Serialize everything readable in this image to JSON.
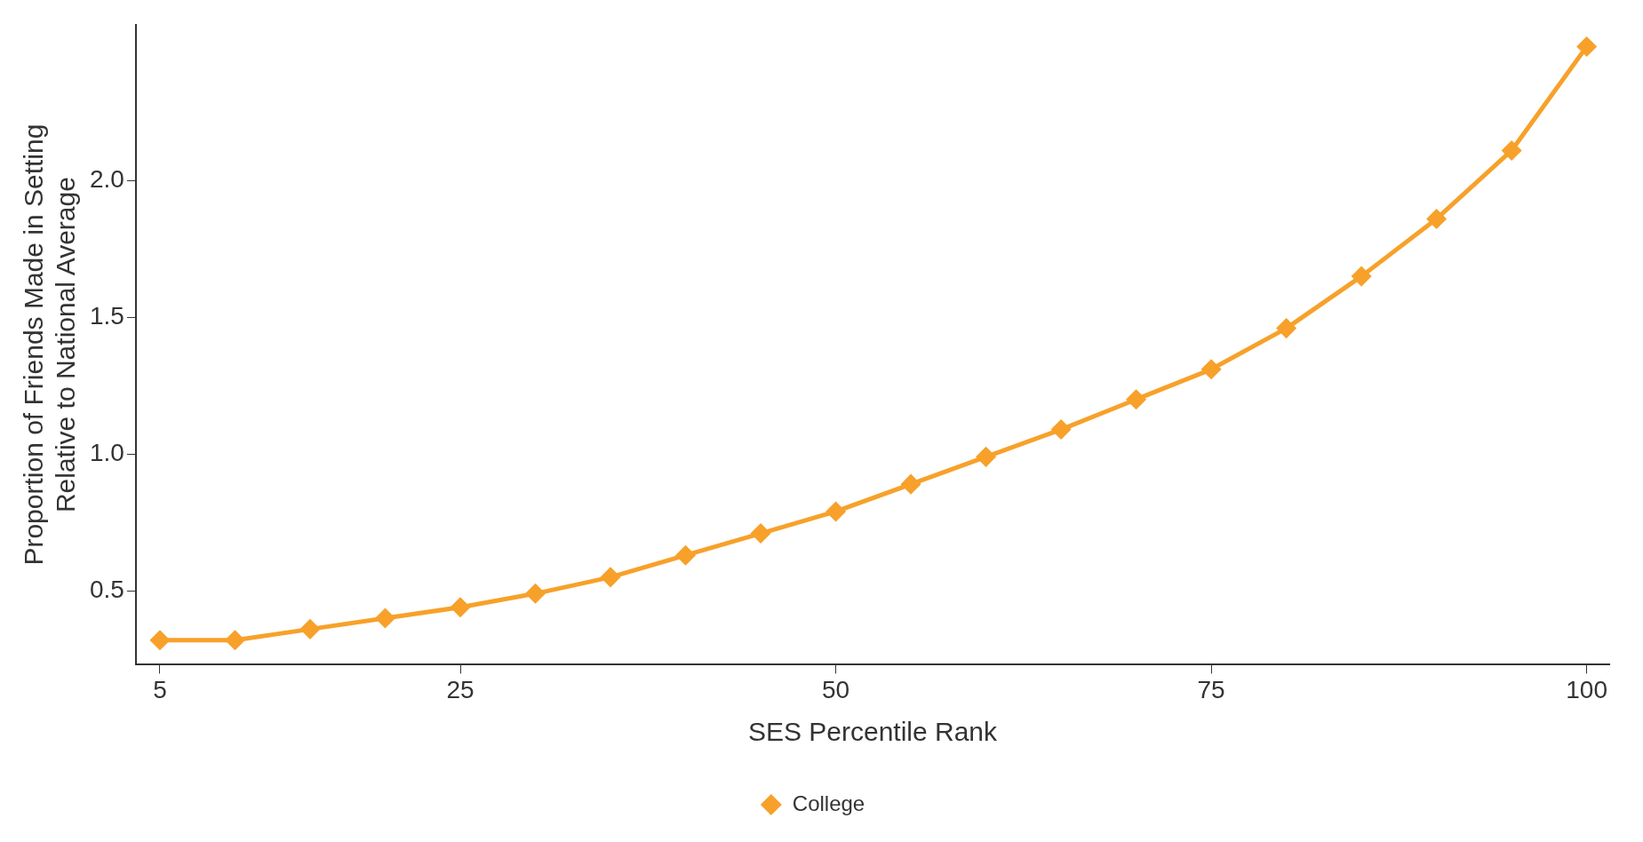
{
  "chart_data": {
    "type": "line",
    "xlabel": "SES Percentile Rank",
    "ylabel": "Proportion of Friends Made in Setting\nRelative to National Average",
    "x": [
      5,
      10,
      15,
      20,
      25,
      30,
      35,
      40,
      45,
      50,
      55,
      60,
      65,
      70,
      75,
      80,
      85,
      90,
      95,
      100
    ],
    "series": [
      {
        "name": "College",
        "color": "#f7a12a",
        "values": [
          0.32,
          0.32,
          0.36,
          0.4,
          0.44,
          0.49,
          0.55,
          0.63,
          0.71,
          0.79,
          0.89,
          0.99,
          1.09,
          1.2,
          1.31,
          1.46,
          1.65,
          1.86,
          2.11,
          2.49
        ]
      }
    ],
    "xlim": [
      3.4,
      101.5
    ],
    "xticks": [
      5,
      25,
      50,
      75,
      100
    ],
    "ylim": [
      0.23,
      2.57
    ],
    "yticks": [
      0.5,
      {
        "value": 1,
        "label": "1.0"
      },
      1.5,
      {
        "value": 2,
        "label": "2.0"
      }
    ],
    "grid": false,
    "legend": "bottom",
    "marker": "diamond",
    "line_style": "solid"
  }
}
